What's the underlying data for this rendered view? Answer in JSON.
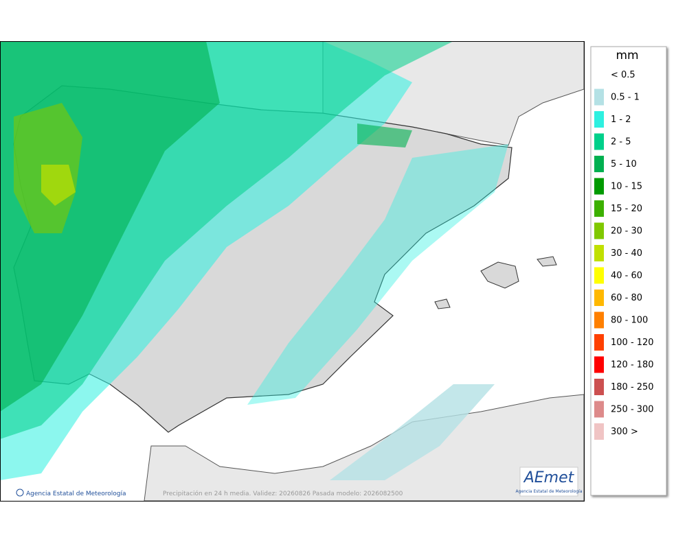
{
  "map": {
    "credit": "Agencia Estatal de Meteorología",
    "caption": "Precipitación en 24 h media. Validez: 20260826 Pasada modelo: 2026082500",
    "logo": {
      "brand": "AEmet",
      "subtitle": "Agencia Estatal de Meteorología"
    }
  },
  "legend": {
    "unit": "mm",
    "items": [
      {
        "label": "< 0.5"
      },
      {
        "label": "0.5 - 1",
        "color": "#b4e1e5"
      },
      {
        "label": "1 - 2",
        "color": "#2ef0e0"
      },
      {
        "label": "2 - 5",
        "color": "#00d08a"
      },
      {
        "label": "5 - 10",
        "color": "#00b050"
      },
      {
        "label": "10 - 15",
        "color": "#009a00"
      },
      {
        "label": "15 - 20",
        "color": "#3cb000"
      },
      {
        "label": "20 - 30",
        "color": "#80c800"
      },
      {
        "label": "30 - 40",
        "color": "#c0e000"
      },
      {
        "label": "40 - 60",
        "color": "#ffff00"
      },
      {
        "label": "60 - 80",
        "color": "#ffb800"
      },
      {
        "label": "80 - 100",
        "color": "#ff8000"
      },
      {
        "label": "100 - 120",
        "color": "#ff4000"
      },
      {
        "label": "120 - 180",
        "color": "#ff0000"
      },
      {
        "label": "180 - 250",
        "color": "#cc5050"
      },
      {
        "label": "250 - 300",
        "color": "#dd8a8a"
      },
      {
        "label": "300 >",
        "color": "#f0c4c4"
      }
    ]
  }
}
